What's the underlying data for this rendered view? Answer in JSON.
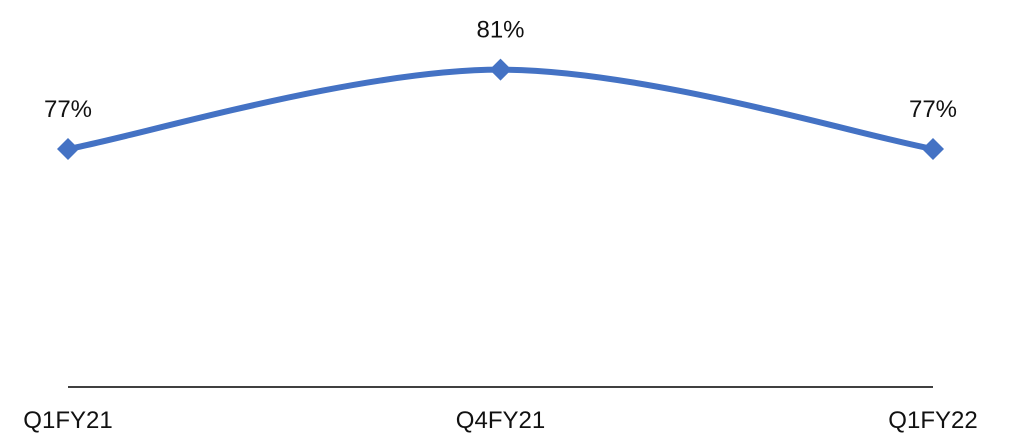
{
  "chart_data": {
    "type": "line",
    "categories": [
      "Q1FY21",
      "Q4FY21",
      "Q1FY22"
    ],
    "series": [
      {
        "values": [
          77,
          81,
          77
        ],
        "labels": [
          "77%",
          "81%",
          "77%"
        ],
        "color": "#4472C4",
        "marker": "diamond",
        "smooth": true
      }
    ],
    "ylim": [
      65,
      83
    ],
    "grid": false,
    "legend": "none",
    "xaxis_line_color": "#000000"
  }
}
